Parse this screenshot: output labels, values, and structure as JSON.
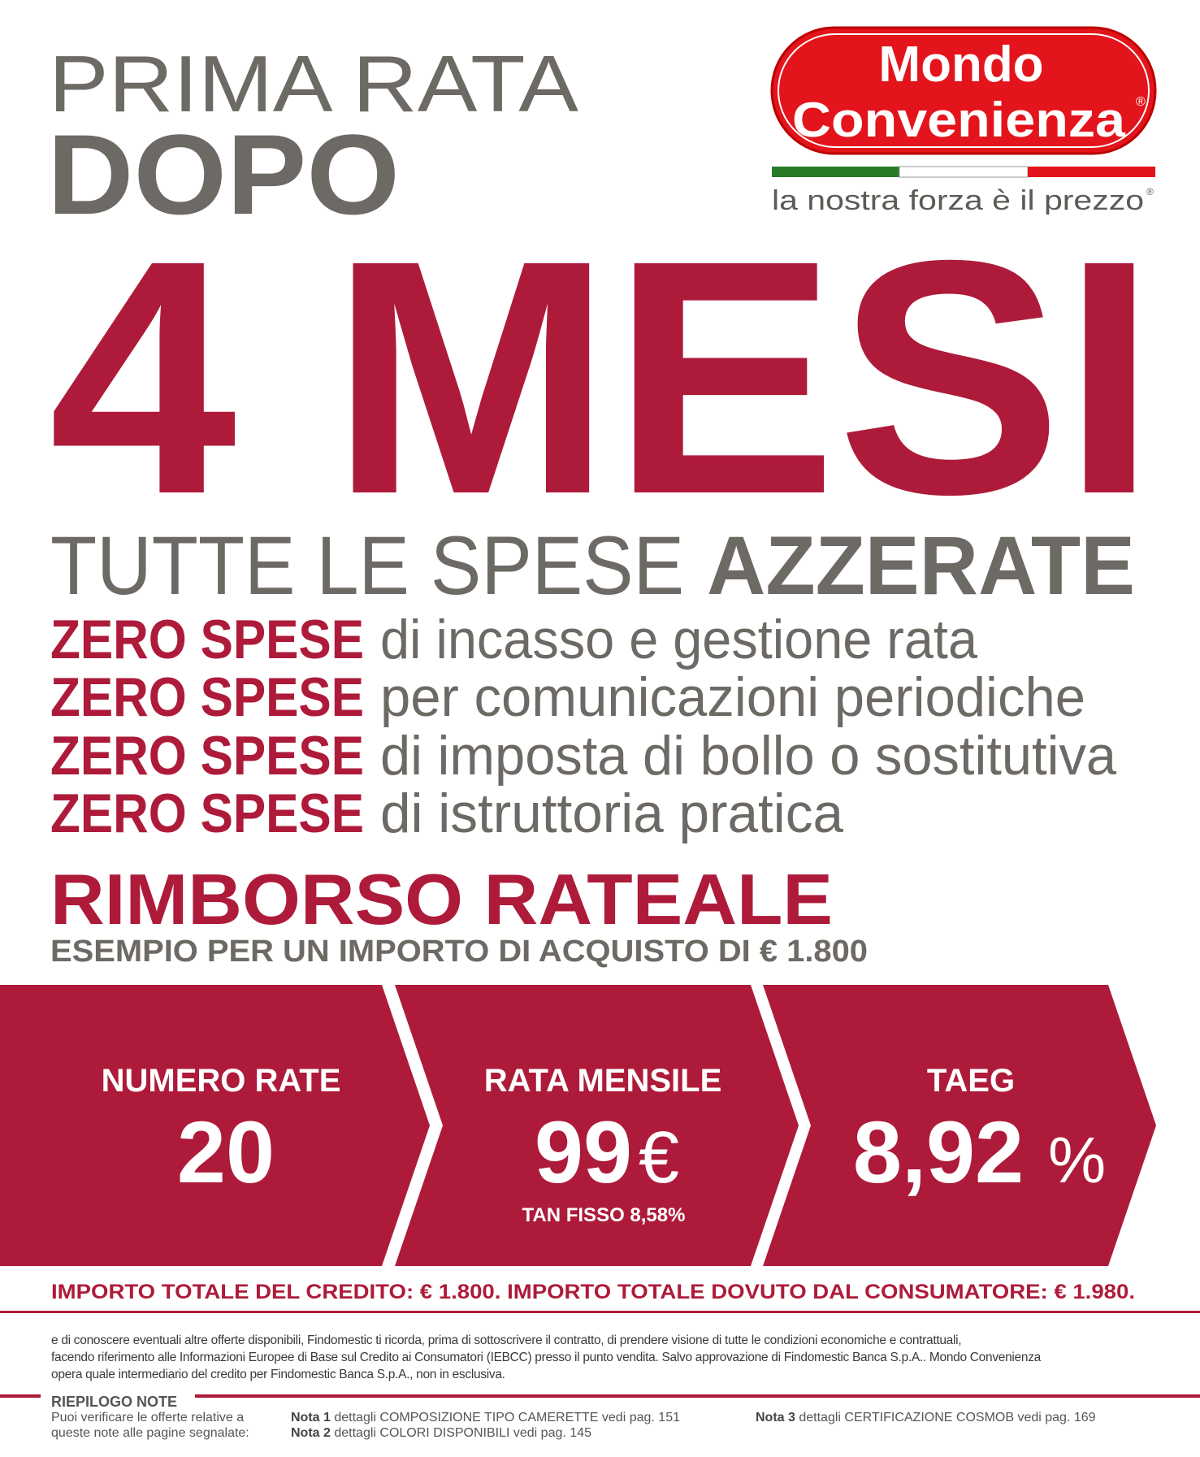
{
  "headline": {
    "line1": "PRIMA RATA",
    "line2": "DOPO",
    "big": "4 MESI",
    "subtitle_light": "TUTTE LE SPESE",
    "subtitle_bold": "AZZERATE"
  },
  "zero_items": [
    {
      "bold": "ZERO SPESE",
      "text": "di incasso e gestione rata"
    },
    {
      "bold": "ZERO SPESE",
      "text": "per comunicazioni periodiche"
    },
    {
      "bold": "ZERO SPESE",
      "text": "di imposta di bollo o sostitutiva"
    },
    {
      "bold": "ZERO SPESE",
      "text": "di istruttoria pratica"
    }
  ],
  "rimborso": {
    "title": "RIMBORSO RATEALE",
    "example": "ESEMPIO PER UN IMPORTO DI ACQUISTO DI € 1.800"
  },
  "band": {
    "numero": {
      "label": "NUMERO RATE",
      "value": "20"
    },
    "rata": {
      "label": "RATA MENSILE",
      "value": "99",
      "unit": "€",
      "note": "TAN FISSO 8,58%"
    },
    "taeg": {
      "label": "TAEG",
      "value": "8,92",
      "unit": "%"
    }
  },
  "totals": "IMPORTO TOTALE DEL CREDITO: € 1.800. IMPORTO TOTALE DOVUTO DAL CONSUMATORE: € 1.980.",
  "fine_print": [
    "e di conoscere eventuali altre offerte disponibili, Findomestic ti ricorda, prima di sottoscrivere il contratto, di prendere visione di tutte le condizioni economiche e contrattuali,",
    "facendo riferimento alle Informazioni Europee di Base sul Credito ai Consumatori (IEBCC) presso il punto vendita. Salvo approvazione di Findomestic Banca S.p.A.. Mondo Convenienza",
    "opera quale intermediario del credito per Findomestic Banca S.p.A., non in esclusiva."
  ],
  "notes": {
    "title": "RIEPILOGO NOTE",
    "intro": "Puoi verificare le offerte relative a queste note alle pagine segnalate:",
    "items": [
      {
        "label": "Nota 1",
        "text": "dettagli COMPOSIZIONE TIPO CAMERETTE vedi pag. 151"
      },
      {
        "label": "Nota 2",
        "text": "dettagli COLORI DISPONIBILI vedi pag. 145"
      },
      {
        "label": "Nota 3",
        "text": "dettagli CERTIFICAZIONE COSMOB vedi pag. 169"
      }
    ]
  },
  "logo": {
    "line1": "Mondo",
    "line2": "Convenienza",
    "tagline": "la nostra forza è il prezzo",
    "registered": "®"
  },
  "colors": {
    "brand_red": "#ae1b3a",
    "gray": "#6d6964",
    "logo_red": "#e3141b",
    "flag_green": "#2a7a2a",
    "flag_red": "#e3141b"
  }
}
